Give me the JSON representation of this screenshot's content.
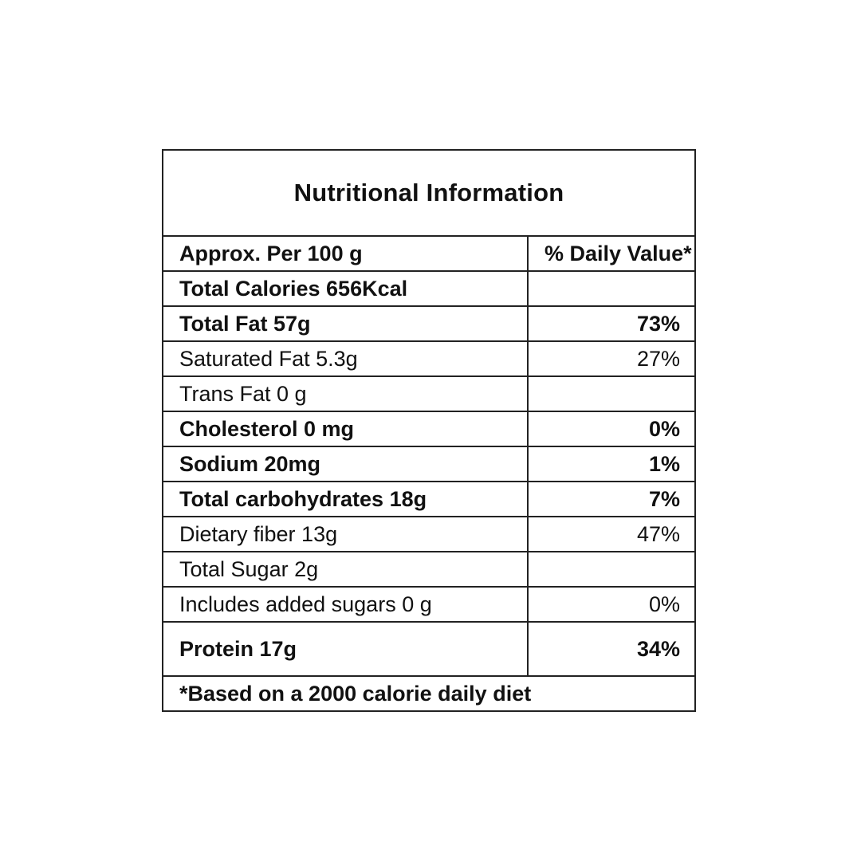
{
  "label": {
    "title": "Nutritional Information",
    "header": {
      "left": "Approx. Per 100 g",
      "right": "% Daily Value*"
    },
    "rows": [
      {
        "name": "Total Calories 656Kcal",
        "value": "",
        "bold": true
      },
      {
        "name": "Total Fat 57g",
        "value": "73%",
        "bold": true
      },
      {
        "name": "Saturated Fat 5.3g",
        "value": "27%",
        "bold": false
      },
      {
        "name": "Trans Fat 0 g",
        "value": "",
        "bold": false
      },
      {
        "name": "Cholesterol 0 mg",
        "value": "0%",
        "bold": true
      },
      {
        "name": "Sodium 20mg",
        "value": "1%",
        "bold": true
      },
      {
        "name": "Total carbohydrates 18g",
        "value": "7%",
        "bold": true
      },
      {
        "name": "Dietary fiber 13g",
        "value": "47%",
        "bold": false
      },
      {
        "name": "Total Sugar 2g",
        "value": "",
        "bold": false
      },
      {
        "name": "Includes added sugars 0 g",
        "value": "0%",
        "bold": false
      },
      {
        "name": "Protein 17g",
        "value": "34%",
        "bold": true
      }
    ],
    "footnote": "*Based on a 2000 calorie daily diet"
  },
  "colors": {
    "border": "#222222",
    "text": "#111111",
    "background": "#ffffff"
  }
}
